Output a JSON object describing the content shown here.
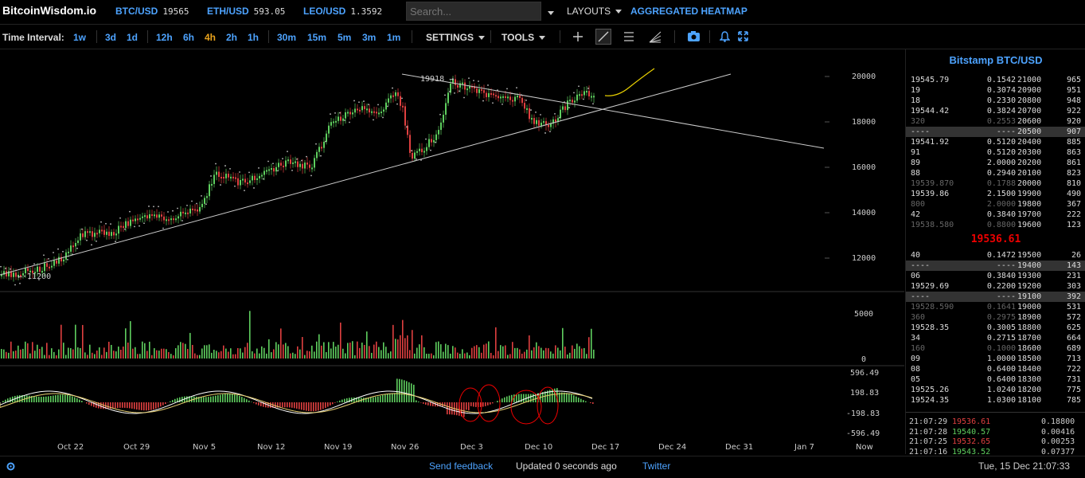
{
  "header": {
    "logo": "BitcoinWisdom.io",
    "tickers": [
      {
        "label": "BTC/USD",
        "value": "19565"
      },
      {
        "label": "ETH/USD",
        "value": "593.05"
      },
      {
        "label": "LEO/USD",
        "value": "1.3592"
      }
    ],
    "search_placeholder": "Search...",
    "layouts_label": "LAYOUTS",
    "heatmap_label": "AGGREGATED HEATMAP"
  },
  "toolbar": {
    "interval_label": "Time Interval:",
    "intervals": [
      "1w",
      "3d",
      "1d",
      "12h",
      "6h",
      "4h",
      "2h",
      "1h",
      "30m",
      "15m",
      "5m",
      "3m",
      "1m"
    ],
    "active_interval": "4h",
    "settings_label": "SETTINGS",
    "tools_label": "TOOLS"
  },
  "chart": {
    "annotations": {
      "high": "19918 →",
      "low": "← 11200"
    },
    "price_ticks": [
      "20000",
      "18000",
      "16000",
      "14000",
      "12000"
    ],
    "volume_ticks": [
      "5000",
      "0"
    ],
    "macd_ticks": [
      "596.49",
      "198.83",
      "-198.83",
      "-596.49"
    ],
    "date_ticks": [
      "Oct 22",
      "Oct 29",
      "Nov 5",
      "Nov 12",
      "Nov 19",
      "Nov 26",
      "Dec 3",
      "Dec 10",
      "Dec 17",
      "Dec 24",
      "Dec 31",
      "Jan 7",
      "Now"
    ]
  },
  "orderbook": {
    "title": "Bitstamp BTC/USD",
    "asks": [
      {
        "price": "19545.79",
        "amount": "0.1542"
      },
      {
        "price": "19",
        "amount": "0.3074"
      },
      {
        "price": "18",
        "amount": "0.2330"
      },
      {
        "price": "19544.42",
        "amount": "0.3824"
      },
      {
        "price": "320",
        "amount": "0.2553"
      },
      {
        "price": "----",
        "amount": "----"
      },
      {
        "price": "19541.92",
        "amount": "0.5120"
      },
      {
        "price": "91",
        "amount": "0.5120"
      },
      {
        "price": "89",
        "amount": "2.0000"
      },
      {
        "price": "88",
        "amount": "0.2940"
      },
      {
        "price": "19539.870",
        "amount": "0.1788"
      },
      {
        "price": "19539.86",
        "amount": "2.1500"
      },
      {
        "price": "800",
        "amount": "2.0000"
      },
      {
        "price": "42",
        "amount": "0.3840"
      },
      {
        "price": "19538.580",
        "amount": "0.8800"
      }
    ],
    "ask_depth": [
      {
        "level": "21000",
        "count": "965"
      },
      {
        "level": "20900",
        "count": "951"
      },
      {
        "level": "20800",
        "count": "948"
      },
      {
        "level": "20700",
        "count": "922"
      },
      {
        "level": "20600",
        "count": "920"
      },
      {
        "level": "20500",
        "count": "907"
      },
      {
        "level": "20400",
        "count": "885"
      },
      {
        "level": "20300",
        "count": "863"
      },
      {
        "level": "20200",
        "count": "861"
      },
      {
        "level": "20100",
        "count": "823"
      },
      {
        "level": "20000",
        "count": "810"
      },
      {
        "level": "19900",
        "count": "490"
      },
      {
        "level": "19800",
        "count": "367"
      },
      {
        "level": "19700",
        "count": "222"
      },
      {
        "level": "19600",
        "count": "123"
      }
    ],
    "last_price": "19536.61",
    "bids": [
      {
        "price": "40",
        "amount": "0.1472"
      },
      {
        "price": "----",
        "amount": "----"
      },
      {
        "price": "06",
        "amount": "0.3840"
      },
      {
        "price": "19529.69",
        "amount": "0.2200"
      },
      {
        "price": "----",
        "amount": "----"
      },
      {
        "price": "19528.590",
        "amount": "0.1641"
      },
      {
        "price": "360",
        "amount": "0.2975"
      },
      {
        "price": "19528.35",
        "amount": "0.3005"
      },
      {
        "price": "34",
        "amount": "0.2715"
      },
      {
        "price": "160",
        "amount": "0.1000"
      },
      {
        "price": "09",
        "amount": "1.0000"
      },
      {
        "price": "08",
        "amount": "0.6400"
      },
      {
        "price": "05",
        "amount": "0.6400"
      },
      {
        "price": "19525.26",
        "amount": "1.0240"
      },
      {
        "price": "19524.35",
        "amount": "1.0300"
      }
    ],
    "bid_depth": [
      {
        "level": "19500",
        "count": "26"
      },
      {
        "level": "19400",
        "count": "143"
      },
      {
        "level": "19300",
        "count": "231"
      },
      {
        "level": "19200",
        "count": "303"
      },
      {
        "level": "19100",
        "count": "392"
      },
      {
        "level": "19000",
        "count": "531"
      },
      {
        "level": "18900",
        "count": "572"
      },
      {
        "level": "18800",
        "count": "625"
      },
      {
        "level": "18700",
        "count": "664"
      },
      {
        "level": "18600",
        "count": "689"
      },
      {
        "level": "18500",
        "count": "713"
      },
      {
        "level": "18400",
        "count": "722"
      },
      {
        "level": "18300",
        "count": "731"
      },
      {
        "level": "18200",
        "count": "775"
      },
      {
        "level": "18100",
        "count": "785"
      }
    ],
    "trades": [
      {
        "time": "21:07:29",
        "price": "19536.61",
        "amount": "0.18800",
        "side": "sell"
      },
      {
        "time": "21:07:28",
        "price": "19540.57",
        "amount": "0.00416",
        "side": "buy"
      },
      {
        "time": "21:07:25",
        "price": "19532.65",
        "amount": "0.00253",
        "side": "sell"
      },
      {
        "time": "21:07:16",
        "price": "19543.52",
        "amount": "0.07377",
        "side": "buy"
      }
    ]
  },
  "footer": {
    "feedback": "Send feedback",
    "updated": "Updated 0 seconds ago",
    "twitter": "Twitter",
    "datetime": "Tue, 15 Dec 21:07:33"
  },
  "colors": {
    "accent": "#4da3ff",
    "up": "#5fcf5f",
    "down": "#e04040",
    "active": "#e8a21c"
  }
}
